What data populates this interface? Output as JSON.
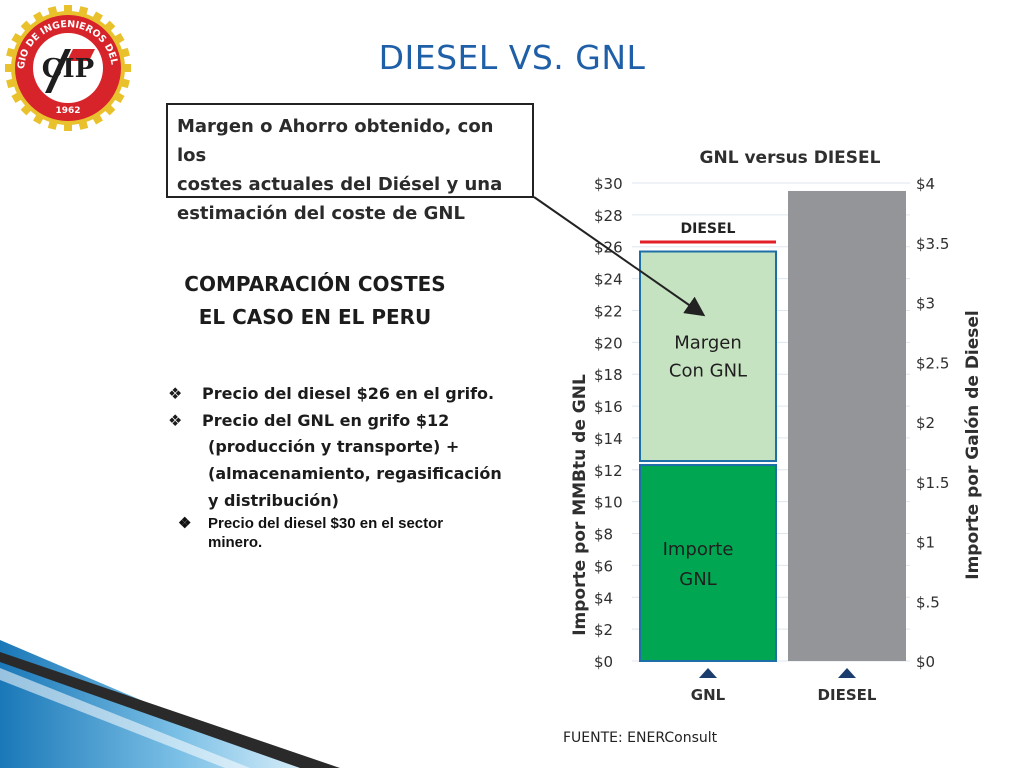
{
  "slide": {
    "title": "DIESEL VS. GNL",
    "callout_lines": [
      "Margen o Ahorro obtenido, con los",
      "costes actuales del Diésel y una",
      "estimación del coste de GNL"
    ],
    "comparison_title_lines": [
      "COMPARACIÓN COSTES",
      "EL CASO EN EL PERU"
    ],
    "bullets": [
      {
        "text": "Precio del diesel $26 en el grifo."
      },
      {
        "text": "Precio del GNL en grifo  $12",
        "continuation": [
          "(producción y transporte) +",
          "(almacenamiento, regasificación",
          "y distribución)"
        ]
      }
    ],
    "bullet_mining_lines": [
      "Precio del diesel $30 en el sector",
      "minero."
    ],
    "source": "FUENTE: ENERConsult"
  },
  "logo": {
    "ring_text": "COLEGIO DE INGENIEROS DEL PERU",
    "emblem": "CIP",
    "year": "1962",
    "colors": {
      "ring": "#d7242b",
      "gear": "#e9c12d",
      "center": "#ffffff"
    }
  },
  "colors": {
    "title": "#1f5fa8",
    "gnl_import": "#00a651",
    "gnl_margin": "#c6e3c1",
    "diesel_bar": "#939598",
    "diesel_line": "#e21e26",
    "bar_border": "#1e6fa8"
  },
  "chart_data": {
    "type": "bar",
    "title": "GNL versus DIESEL",
    "categories": [
      "GNL",
      "DIESEL"
    ],
    "ylabel": "Importe por MMBtu de GNL",
    "ylabel_right": "Importe por Galón de Diesel",
    "ylim": [
      0,
      30
    ],
    "ylim_right": [
      0,
      4
    ],
    "yticks": [
      "$0",
      "$2",
      "$4",
      "$6",
      "$8",
      "$10",
      "$12",
      "$14",
      "$16",
      "$18",
      "$20",
      "$22",
      "$24",
      "$26",
      "$28",
      "$30"
    ],
    "yticks_right": [
      "$0",
      "$.5",
      "$1",
      "$1.5",
      "$2",
      "$2.5",
      "$3",
      "$3.5",
      "$4"
    ],
    "stacked": true,
    "series": [
      {
        "name": "Importe GNL",
        "label_lines": [
          "Importe",
          "GNL"
        ],
        "values": [
          12.3,
          0
        ]
      },
      {
        "name": "Margen Con GNL",
        "label_lines": [
          "Margen",
          "Con GNL"
        ],
        "values": [
          13.4,
          0
        ]
      },
      {
        "name": "DIESEL",
        "values": [
          0,
          29.5
        ]
      }
    ],
    "reference_line": {
      "label": "DIESEL",
      "value": 26.3
    },
    "grid": true
  }
}
